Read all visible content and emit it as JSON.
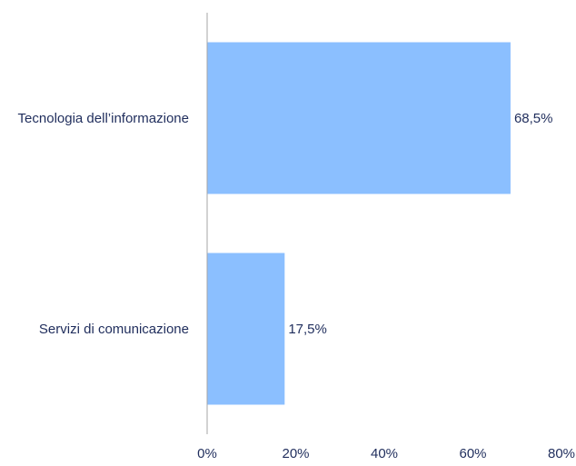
{
  "chart_data": {
    "type": "bar",
    "orientation": "horizontal",
    "categories": [
      "Tecnologia dell’informazione",
      "Servizi di comunicazione"
    ],
    "values": [
      68.5,
      17.5
    ],
    "data_labels": [
      "68,5%",
      "17,5%"
    ],
    "xlim": [
      0,
      80
    ],
    "xticks": [
      0,
      20,
      40,
      60,
      80
    ],
    "xtick_labels": [
      "0%",
      "20%",
      "40%",
      "60%",
      "80%"
    ],
    "title": "",
    "xlabel": "",
    "ylabel": "",
    "grid": false,
    "legend": "none"
  },
  "colors": {
    "bar": "#8bbfff",
    "axis": "#a6a6a6",
    "text": "#1f2d5c"
  }
}
